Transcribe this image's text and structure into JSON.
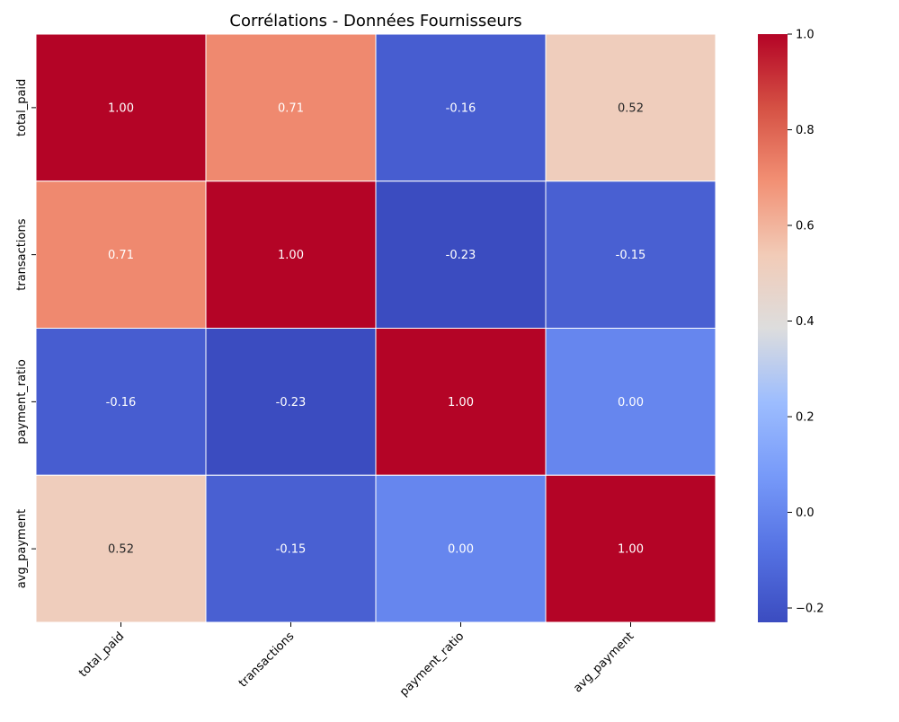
{
  "chart_data": {
    "type": "heatmap",
    "title": "Corrélations - Données Fournisseurs",
    "xlabel": "",
    "ylabel": "",
    "row_labels": [
      "total_paid",
      "transactions",
      "payment_ratio",
      "avg_payment"
    ],
    "col_labels": [
      "total_paid",
      "transactions",
      "payment_ratio",
      "avg_payment"
    ],
    "values": [
      [
        1.0,
        0.71,
        -0.16,
        0.52
      ],
      [
        0.71,
        1.0,
        -0.23,
        -0.15
      ],
      [
        -0.16,
        -0.23,
        1.0,
        0.0
      ],
      [
        0.52,
        -0.15,
        0.0,
        1.0
      ]
    ],
    "cell_labels": [
      [
        "1.00",
        "0.71",
        "-0.16",
        "0.52"
      ],
      [
        "0.71",
        "1.00",
        "-0.23",
        "-0.15"
      ],
      [
        "-0.16",
        "-0.23",
        "1.00",
        "0.00"
      ],
      [
        "0.52",
        "-0.15",
        "0.00",
        "1.00"
      ]
    ],
    "colormap": "coolwarm",
    "vmin": -0.23,
    "vmax": 1.0,
    "colorbar": {
      "ticks": [
        -0.2,
        0.0,
        0.2,
        0.4,
        0.6,
        0.8,
        1.0
      ],
      "tick_labels": [
        "−0.2",
        "0.0",
        "0.2",
        "0.4",
        "0.6",
        "0.8",
        "1.0"
      ]
    },
    "grid_line_color": "#ffffff"
  }
}
